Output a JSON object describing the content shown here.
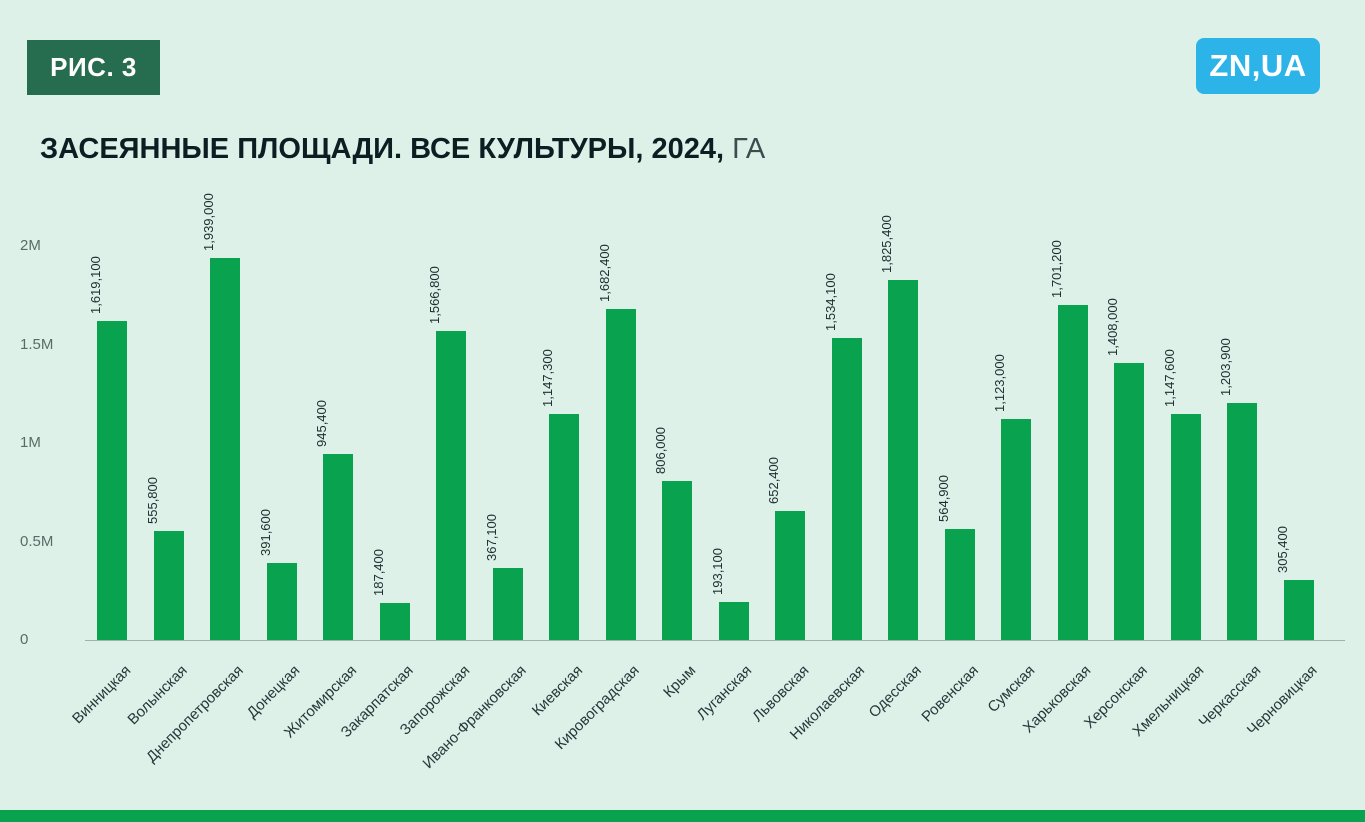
{
  "header": {
    "figure_label": "РИС. 3",
    "logo_text": "ZN,UA",
    "title_bold": "ЗАСЕЯННЫЕ ПЛОЩАДИ. ВСЕ КУЛЬТУРЫ, 2024,",
    "title_unit": " ГА"
  },
  "colors": {
    "background": "#def1e8",
    "bar": "#09a24e",
    "badge_background": "#266c4e",
    "logo_background": "#2cb3e8",
    "title_text": "#0c1e22",
    "axis_text": "#5c6b69",
    "bottom_strip": "#09a24e"
  },
  "chart_data": {
    "type": "bar",
    "title": "ЗАСЕЯННЫЕ ПЛОЩАДИ. ВСЕ КУЛЬТУРЫ, 2024, ГА",
    "xlabel": "",
    "ylabel": "",
    "ylim": [
      0,
      2000000
    ],
    "grid": false,
    "legend": false,
    "y_ticks": [
      "0",
      "0.5M",
      "1M",
      "1.5M",
      "2M"
    ],
    "y_tick_values": [
      0,
      500000,
      1000000,
      1500000,
      2000000
    ],
    "categories": [
      "Винницкая",
      "Волынская",
      "Днепропетровская",
      "Донецкая",
      "Житомирская",
      "Закарпатская",
      "Запорожская",
      "Ивано-Франковская",
      "Киевская",
      "Кировоградская",
      "Крым",
      "Луганская",
      "Львовская",
      "Николаевская",
      "Одесская",
      "Ровенская",
      "Сумская",
      "Харьковская",
      "Херсонская",
      "Хмельницкая",
      "Черкасская",
      "Черновицкая"
    ],
    "values": [
      1619100,
      555800,
      1939000,
      391600,
      945400,
      187400,
      1566800,
      367100,
      1147300,
      1682400,
      806000,
      193100,
      652400,
      1534100,
      1825400,
      564900,
      1123000,
      1701200,
      1408000,
      1147600,
      1203900,
      305400
    ],
    "value_labels": [
      "1,619,100",
      "555,800",
      "1,939,000",
      "391,600",
      "945,400",
      "187,400",
      "1,566,800",
      "367,100",
      "1,147,300",
      "1,682,400",
      "806,000",
      "193,100",
      "652,400",
      "1,534,100",
      "1,825,400",
      "564,900",
      "1,123,000",
      "1,701,200",
      "1,408,000",
      "1,147,600",
      "1,203,900",
      "305,400"
    ]
  }
}
